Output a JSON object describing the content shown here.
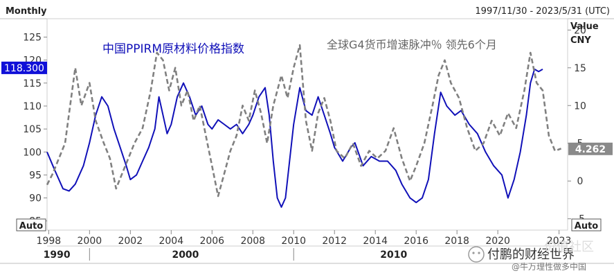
{
  "header": {
    "frequency": "Monthly",
    "date_range": "1997/11/30 - 2023/5/31 (UTC)",
    "right_axis_title": "Value",
    "right_axis_unit": "CNY"
  },
  "left_auto_label": "Auto",
  "right_auto_label": "Auto",
  "watermark": {
    "brand": "付鹏的财经世界",
    "sub": "@牛万理性做多中国",
    "faint": "价值社区"
  },
  "chart_data": {
    "type": "line",
    "annotations": [
      "中国PPIRM原材料价格指数",
      "全球G4货币增速脉冲％ 领先6个月"
    ],
    "x_ticks": [
      "1998",
      "2000",
      "2002",
      "2004",
      "2006",
      "2008",
      "2010",
      "2012",
      "2014",
      "2016",
      "2018",
      "2020",
      "2023"
    ],
    "decade_labels": [
      "1990",
      "2000",
      "2010"
    ],
    "left_axis": {
      "ticks": [
        85,
        90,
        95,
        100,
        105,
        110,
        115,
        120,
        125
      ],
      "ylim": [
        83,
        129
      ]
    },
    "right_axis": {
      "ticks": [
        -5,
        0,
        5,
        10,
        15,
        20
      ],
      "ylim": [
        -6.5,
        21.5
      ]
    },
    "xlim": [
      1997.92,
      2023.42
    ],
    "last_value_left": "118.300",
    "last_value_right": "4.262",
    "series": [
      {
        "name": "中国PPIRM原材料价格指数",
        "axis": "left",
        "color": "#1010b8",
        "style": "solid",
        "points": [
          [
            1997.92,
            100
          ],
          [
            1998.3,
            96
          ],
          [
            1998.7,
            92
          ],
          [
            1999.0,
            91.5
          ],
          [
            1999.3,
            93
          ],
          [
            1999.7,
            97
          ],
          [
            2000.0,
            102
          ],
          [
            2000.3,
            108
          ],
          [
            2000.6,
            112
          ],
          [
            2000.9,
            110
          ],
          [
            2001.2,
            105
          ],
          [
            2001.5,
            101
          ],
          [
            2001.8,
            97
          ],
          [
            2002.0,
            94
          ],
          [
            2002.3,
            95
          ],
          [
            2002.6,
            98
          ],
          [
            2002.9,
            101
          ],
          [
            2003.2,
            105
          ],
          [
            2003.4,
            112
          ],
          [
            2003.6,
            108
          ],
          [
            2003.8,
            104
          ],
          [
            2004.0,
            106
          ],
          [
            2004.3,
            112
          ],
          [
            2004.6,
            115
          ],
          [
            2004.9,
            112
          ],
          [
            2005.2,
            108
          ],
          [
            2005.5,
            110
          ],
          [
            2005.8,
            106
          ],
          [
            2006.0,
            105
          ],
          [
            2006.3,
            107
          ],
          [
            2006.6,
            106
          ],
          [
            2006.9,
            105
          ],
          [
            2007.2,
            106
          ],
          [
            2007.5,
            104
          ],
          [
            2007.8,
            106
          ],
          [
            2008.0,
            108
          ],
          [
            2008.3,
            112
          ],
          [
            2008.6,
            114
          ],
          [
            2008.8,
            108
          ],
          [
            2009.0,
            98
          ],
          [
            2009.2,
            90
          ],
          [
            2009.4,
            88
          ],
          [
            2009.6,
            90
          ],
          [
            2009.8,
            98
          ],
          [
            2010.0,
            106
          ],
          [
            2010.3,
            114
          ],
          [
            2010.6,
            109
          ],
          [
            2010.9,
            108
          ],
          [
            2011.2,
            112
          ],
          [
            2011.5,
            108
          ],
          [
            2011.8,
            104
          ],
          [
            2012.0,
            101
          ],
          [
            2012.4,
            98
          ],
          [
            2012.8,
            101
          ],
          [
            2013.0,
            102
          ],
          [
            2013.4,
            97
          ],
          [
            2013.8,
            99
          ],
          [
            2014.2,
            98
          ],
          [
            2014.6,
            98
          ],
          [
            2015.0,
            96
          ],
          [
            2015.3,
            93
          ],
          [
            2015.7,
            90
          ],
          [
            2016.0,
            89
          ],
          [
            2016.3,
            90
          ],
          [
            2016.6,
            94
          ],
          [
            2016.9,
            104
          ],
          [
            2017.2,
            113
          ],
          [
            2017.5,
            110
          ],
          [
            2017.9,
            108
          ],
          [
            2018.2,
            109
          ],
          [
            2018.6,
            106
          ],
          [
            2019.0,
            104
          ],
          [
            2019.4,
            100
          ],
          [
            2019.8,
            97
          ],
          [
            2020.2,
            95
          ],
          [
            2020.5,
            90
          ],
          [
            2020.8,
            94
          ],
          [
            2021.1,
            100
          ],
          [
            2021.4,
            108
          ],
          [
            2021.6,
            115
          ],
          [
            2021.8,
            118
          ],
          [
            2022.0,
            117.5
          ],
          [
            2022.2,
            118
          ]
        ]
      },
      {
        "name": "全球G4货币增速脉冲％ 领先6个月",
        "axis": "right",
        "color": "#808080",
        "style": "dashed",
        "points": [
          [
            1997.92,
            -0.5
          ],
          [
            1998.2,
            1
          ],
          [
            1998.5,
            3
          ],
          [
            1998.8,
            5
          ],
          [
            1999.1,
            11
          ],
          [
            1999.3,
            15
          ],
          [
            1999.6,
            10
          ],
          [
            2000.0,
            13
          ],
          [
            2000.3,
            8
          ],
          [
            2000.7,
            5
          ],
          [
            2001.0,
            3
          ],
          [
            2001.3,
            -1
          ],
          [
            2001.6,
            1
          ],
          [
            2001.9,
            3
          ],
          [
            2002.2,
            5
          ],
          [
            2002.6,
            7
          ],
          [
            2003.0,
            12
          ],
          [
            2003.3,
            17
          ],
          [
            2003.6,
            16
          ],
          [
            2003.9,
            12
          ],
          [
            2004.2,
            15
          ],
          [
            2004.5,
            10
          ],
          [
            2004.8,
            12
          ],
          [
            2005.1,
            8
          ],
          [
            2005.4,
            10
          ],
          [
            2005.7,
            6
          ],
          [
            2006.0,
            2
          ],
          [
            2006.3,
            -2
          ],
          [
            2006.6,
            1
          ],
          [
            2006.9,
            4
          ],
          [
            2007.2,
            6
          ],
          [
            2007.5,
            10
          ],
          [
            2007.8,
            8
          ],
          [
            2008.1,
            12
          ],
          [
            2008.4,
            9
          ],
          [
            2008.7,
            5
          ],
          [
            2009.0,
            10
          ],
          [
            2009.4,
            14
          ],
          [
            2009.7,
            11
          ],
          [
            2010.0,
            15
          ],
          [
            2010.3,
            18
          ],
          [
            2010.6,
            8
          ],
          [
            2010.9,
            4
          ],
          [
            2011.2,
            9
          ],
          [
            2011.5,
            11
          ],
          [
            2011.8,
            8
          ],
          [
            2012.1,
            4
          ],
          [
            2012.5,
            3
          ],
          [
            2012.9,
            5
          ],
          [
            2013.3,
            2
          ],
          [
            2013.7,
            4
          ],
          [
            2014.1,
            3
          ],
          [
            2014.5,
            4
          ],
          [
            2014.9,
            7
          ],
          [
            2015.3,
            3
          ],
          [
            2015.7,
            0
          ],
          [
            2016.0,
            2
          ],
          [
            2016.4,
            5
          ],
          [
            2016.8,
            10
          ],
          [
            2017.1,
            14
          ],
          [
            2017.4,
            16
          ],
          [
            2017.7,
            13
          ],
          [
            2018.1,
            11
          ],
          [
            2018.5,
            7
          ],
          [
            2018.9,
            4
          ],
          [
            2019.3,
            5
          ],
          [
            2019.7,
            8
          ],
          [
            2020.1,
            6
          ],
          [
            2020.5,
            9
          ],
          [
            2020.9,
            7
          ],
          [
            2021.3,
            12
          ],
          [
            2021.6,
            17
          ],
          [
            2021.9,
            13
          ],
          [
            2022.2,
            12
          ],
          [
            2022.5,
            6
          ],
          [
            2022.8,
            4
          ],
          [
            2023.1,
            4.3
          ]
        ]
      }
    ]
  }
}
